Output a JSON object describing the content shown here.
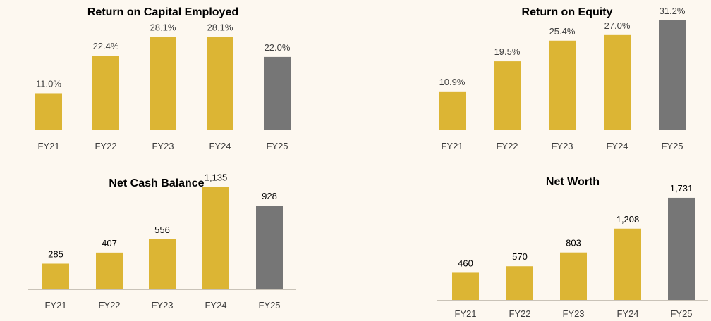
{
  "colors": {
    "gold": "#dcb534",
    "grey": "#767676",
    "label_pct": "#404040",
    "label_num": "#000000"
  },
  "chart_data": [
    {
      "id": "roce",
      "type": "bar",
      "title": "Return on Capital Employed",
      "categories": [
        "FY21",
        "FY22",
        "FY23",
        "FY24",
        "FY25"
      ],
      "values": [
        11.0,
        22.4,
        28.1,
        28.1,
        22.0
      ],
      "labels": [
        "11.0%",
        "22.4%",
        "28.1%",
        "28.1%",
        "22.0%"
      ],
      "highlight_index": 4,
      "ylim": [
        0,
        35
      ]
    },
    {
      "id": "roe",
      "type": "bar",
      "title": "Return on Equity",
      "categories": [
        "FY21",
        "FY22",
        "FY23",
        "FY24",
        "FY25"
      ],
      "values": [
        10.9,
        19.5,
        25.4,
        27.0,
        31.2
      ],
      "labels": [
        "10.9%",
        "19.5%",
        "25.4%",
        "27.0%",
        "31.2%"
      ],
      "highlight_index": 4,
      "ylim": [
        0,
        33
      ]
    },
    {
      "id": "net-cash",
      "type": "bar",
      "title": "Net Cash Balance",
      "categories": [
        "FY21",
        "FY22",
        "FY23",
        "FY24",
        "FY25"
      ],
      "values": [
        285,
        407,
        556,
        1135,
        928
      ],
      "labels": [
        "285",
        "407",
        "556",
        "1,135",
        "928"
      ],
      "highlight_index": 4,
      "ylim": [
        0,
        1280
      ]
    },
    {
      "id": "net-worth",
      "type": "bar",
      "title": "Net Worth",
      "categories": [
        "FY21",
        "FY22",
        "FY23",
        "FY24",
        "FY25"
      ],
      "values": [
        460,
        570,
        803,
        1208,
        1731
      ],
      "labels": [
        "460",
        "570",
        "803",
        "1,208",
        "1,731"
      ],
      "highlight_index": 4,
      "ylim": [
        0,
        1945
      ]
    }
  ]
}
